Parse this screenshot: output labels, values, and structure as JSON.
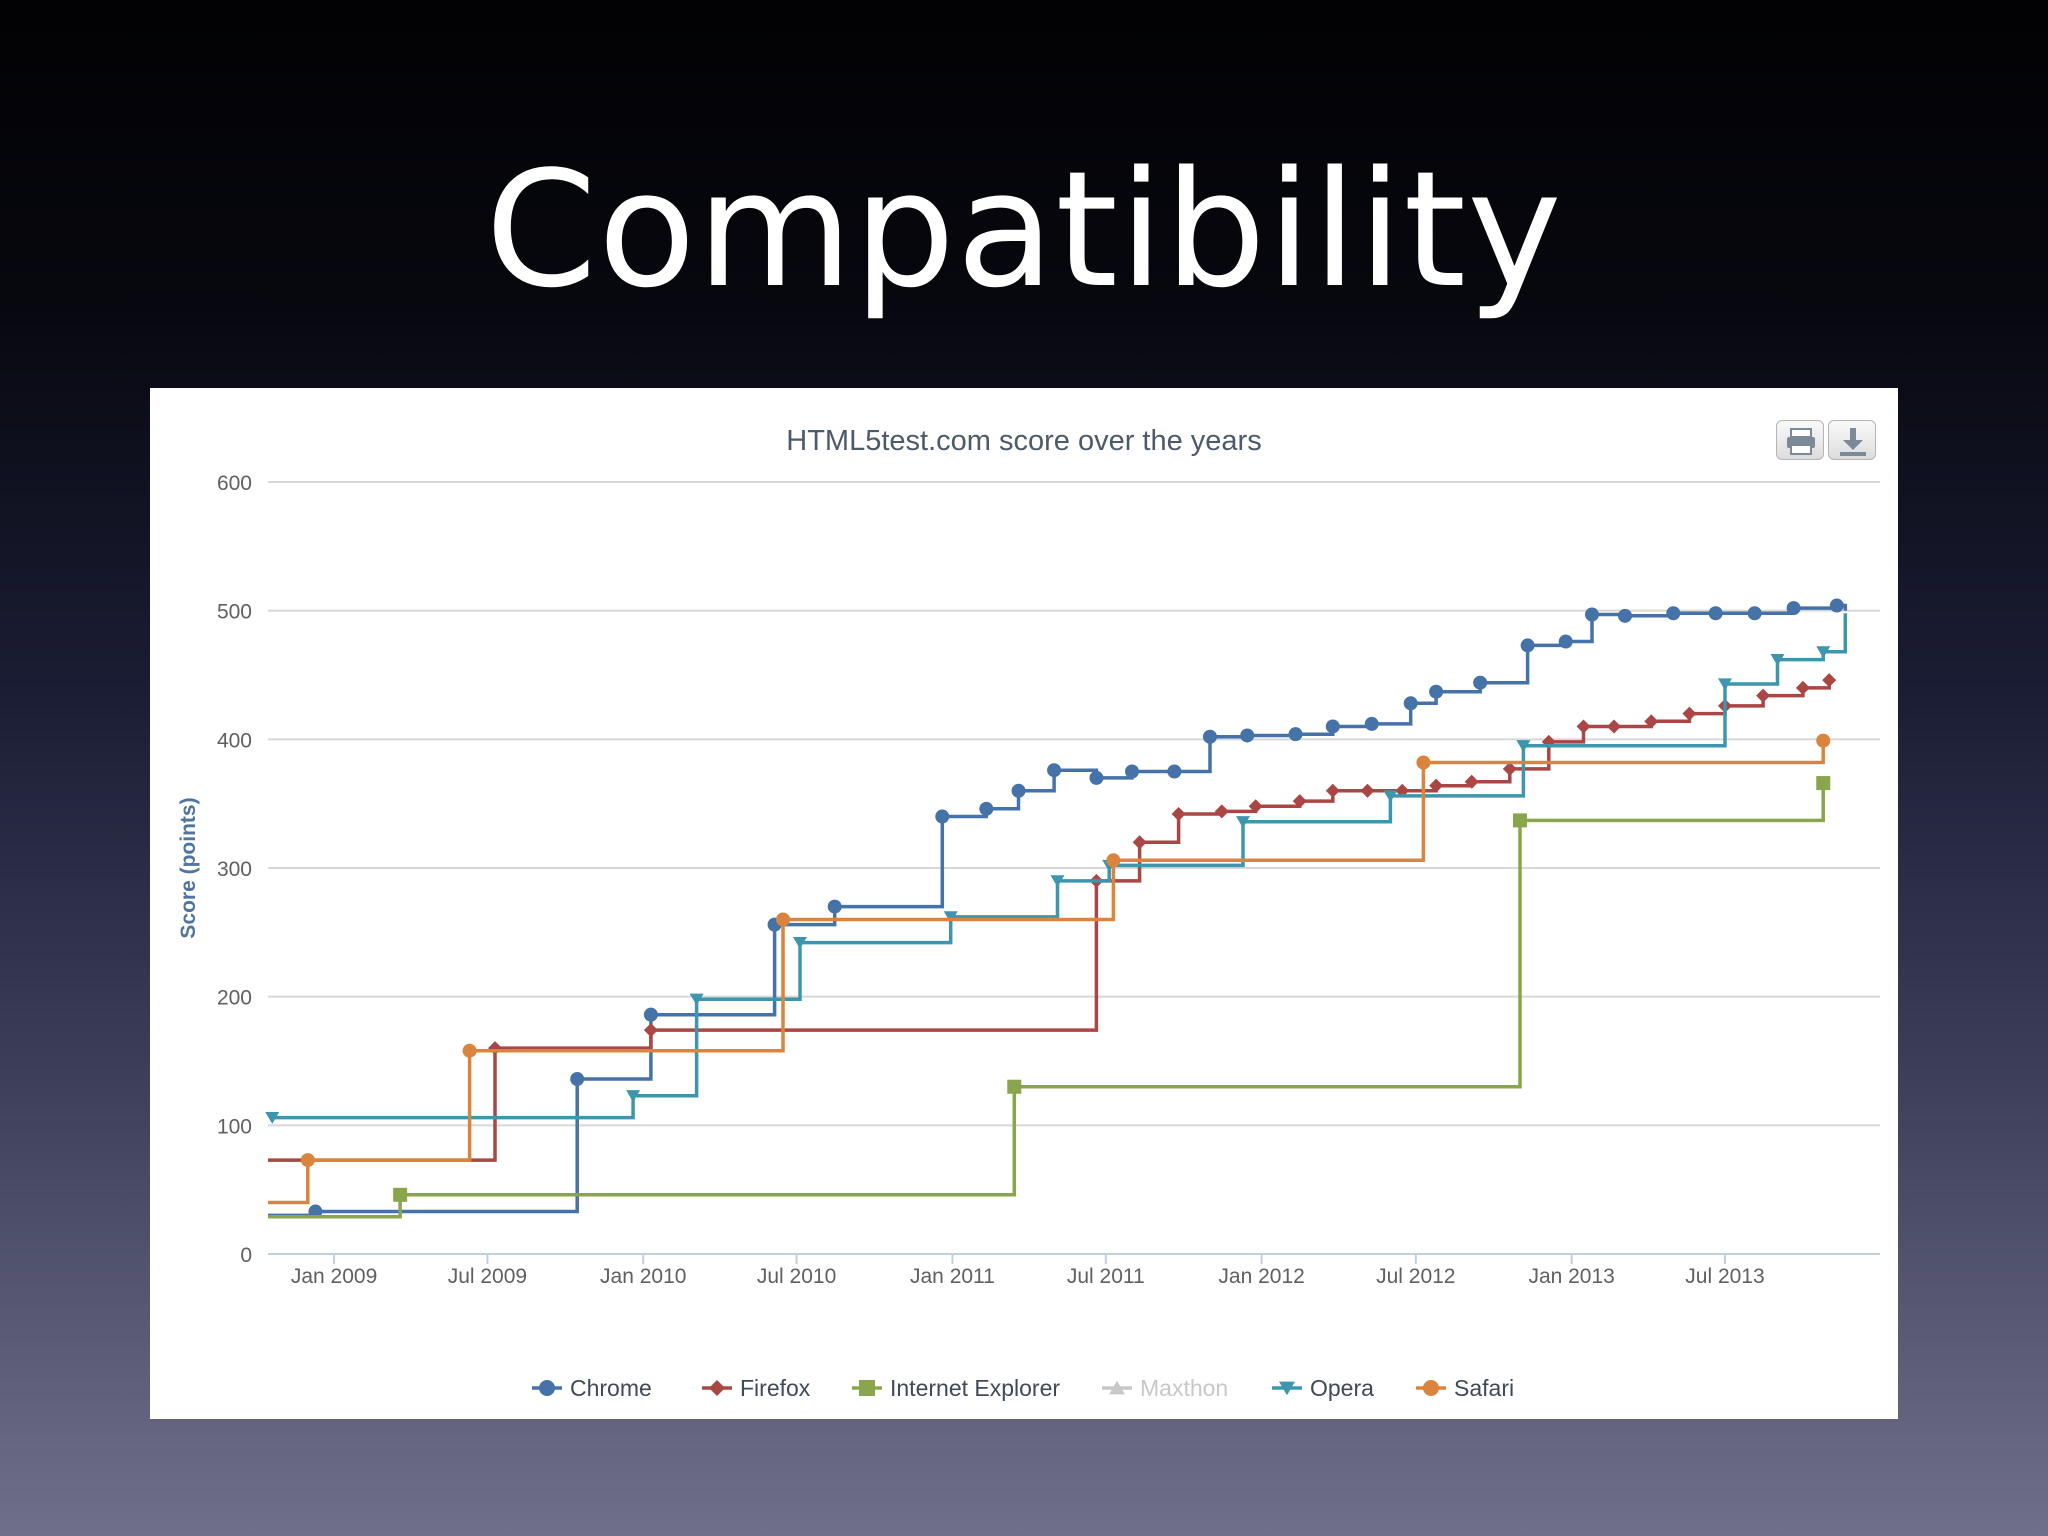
{
  "slide": {
    "title": "Compatibility"
  },
  "colors": {
    "Chrome": "#4572A7",
    "Firefox": "#AA4643",
    "Internet Explorer": "#89A54E",
    "Maxthon": "#c8c8c8",
    "Opera": "#3D96AE",
    "Safari": "#DB843D"
  },
  "chart_data": {
    "type": "line",
    "step": true,
    "title": "HTML5test.com score over the years",
    "ylabel": "Score (points)",
    "xlabel": "",
    "ylim": [
      0,
      600
    ],
    "yticks": [
      "0",
      "100",
      "200",
      "300",
      "400",
      "500",
      "600"
    ],
    "xlim": [
      "2008-10-15",
      "2013-12-31"
    ],
    "xticks": [
      {
        "date": "2009-01-01",
        "label": "Jan 2009"
      },
      {
        "date": "2009-07-01",
        "label": "Jul 2009"
      },
      {
        "date": "2010-01-01",
        "label": "Jan 2010"
      },
      {
        "date": "2010-07-01",
        "label": "Jul 2010"
      },
      {
        "date": "2011-01-01",
        "label": "Jan 2011"
      },
      {
        "date": "2011-07-01",
        "label": "Jul 2011"
      },
      {
        "date": "2012-01-01",
        "label": "Jan 2012"
      },
      {
        "date": "2012-07-01",
        "label": "Jul 2012"
      },
      {
        "date": "2013-01-01",
        "label": "Jan 2013"
      },
      {
        "date": "2013-07-01",
        "label": "Jul 2013"
      }
    ],
    "grid": true,
    "legend_position": "bottom",
    "series": [
      {
        "name": "Chrome",
        "marker": "circle",
        "points": [
          [
            "2008-10-15",
            30,
            false
          ],
          [
            "2008-12-10",
            33,
            true
          ],
          [
            "2009-10-15",
            136,
            true
          ],
          [
            "2010-01-10",
            186,
            true
          ],
          [
            "2010-06-05",
            256,
            true
          ],
          [
            "2010-08-15",
            270,
            true
          ],
          [
            "2010-12-20",
            340,
            true
          ],
          [
            "2011-02-10",
            346,
            true
          ],
          [
            "2011-03-20",
            360,
            true
          ],
          [
            "2011-05-01",
            376,
            true
          ],
          [
            "2011-06-20",
            370,
            true
          ],
          [
            "2011-08-01",
            375,
            true
          ],
          [
            "2011-09-20",
            375,
            true
          ],
          [
            "2011-11-01",
            402,
            true
          ],
          [
            "2011-12-15",
            403,
            true
          ],
          [
            "2012-02-10",
            404,
            true
          ],
          [
            "2012-03-25",
            410,
            true
          ],
          [
            "2012-05-10",
            412,
            true
          ],
          [
            "2012-06-25",
            428,
            true
          ],
          [
            "2012-07-25",
            437,
            true
          ],
          [
            "2012-09-15",
            444,
            true
          ],
          [
            "2012-11-10",
            473,
            true
          ],
          [
            "2012-12-25",
            476,
            true
          ],
          [
            "2013-01-25",
            497,
            true
          ],
          [
            "2013-03-05",
            496,
            true
          ],
          [
            "2013-05-01",
            498,
            true
          ],
          [
            "2013-06-20",
            498,
            true
          ],
          [
            "2013-08-05",
            498,
            true
          ],
          [
            "2013-09-20",
            502,
            true
          ],
          [
            "2013-11-10",
            504,
            true
          ],
          [
            "2013-11-20",
            500,
            false
          ]
        ]
      },
      {
        "name": "Firefox",
        "marker": "diamond",
        "points": [
          [
            "2008-10-15",
            73,
            false
          ],
          [
            "2009-07-10",
            160,
            true
          ],
          [
            "2010-01-10",
            174,
            true
          ],
          [
            "2011-06-20",
            290,
            true
          ],
          [
            "2011-08-10",
            320,
            true
          ],
          [
            "2011-09-25",
            342,
            true
          ],
          [
            "2011-11-15",
            344,
            true
          ],
          [
            "2011-12-25",
            348,
            true
          ],
          [
            "2012-02-15",
            352,
            true
          ],
          [
            "2012-03-25",
            360,
            true
          ],
          [
            "2012-05-05",
            360,
            true
          ],
          [
            "2012-06-15",
            360,
            true
          ],
          [
            "2012-07-25",
            364,
            true
          ],
          [
            "2012-09-05",
            367,
            true
          ],
          [
            "2012-10-20",
            377,
            true
          ],
          [
            "2012-12-05",
            398,
            true
          ],
          [
            "2013-01-15",
            410,
            true
          ],
          [
            "2013-02-20",
            410,
            true
          ],
          [
            "2013-04-05",
            414,
            true
          ],
          [
            "2013-05-20",
            420,
            true
          ],
          [
            "2013-07-01",
            426,
            true
          ],
          [
            "2013-08-15",
            434,
            true
          ],
          [
            "2013-10-01",
            440,
            true
          ],
          [
            "2013-11-01",
            446,
            true
          ]
        ]
      },
      {
        "name": "Internet Explorer",
        "marker": "square",
        "points": [
          [
            "2008-10-15",
            29,
            false
          ],
          [
            "2009-03-20",
            46,
            true
          ],
          [
            "2011-03-15",
            130,
            true
          ],
          [
            "2012-11-01",
            337,
            true
          ],
          [
            "2013-10-25",
            366,
            true
          ]
        ]
      },
      {
        "name": "Opera",
        "marker": "triangle-down",
        "points": [
          [
            "2008-10-20",
            106,
            true
          ],
          [
            "2009-12-20",
            123,
            true
          ],
          [
            "2010-03-05",
            198,
            true
          ],
          [
            "2010-07-05",
            242,
            true
          ],
          [
            "2010-12-30",
            262,
            true
          ],
          [
            "2011-05-05",
            290,
            true
          ],
          [
            "2011-07-05",
            302,
            true
          ],
          [
            "2011-12-10",
            336,
            true
          ],
          [
            "2012-06-01",
            356,
            true
          ],
          [
            "2012-11-05",
            395,
            true
          ],
          [
            "2013-07-01",
            443,
            true
          ],
          [
            "2013-09-01",
            462,
            true
          ],
          [
            "2013-10-25",
            468,
            true
          ],
          [
            "2013-11-20",
            498,
            false
          ]
        ]
      },
      {
        "name": "Safari",
        "marker": "circle",
        "points": [
          [
            "2008-10-15",
            40,
            false
          ],
          [
            "2008-12-01",
            73,
            true
          ],
          [
            "2009-06-10",
            158,
            true
          ],
          [
            "2010-06-15",
            260,
            true
          ],
          [
            "2011-07-10",
            306,
            true
          ],
          [
            "2012-07-10",
            382,
            true
          ],
          [
            "2013-10-25",
            399,
            true
          ]
        ]
      }
    ],
    "legend": [
      "Chrome",
      "Firefox",
      "Internet Explorer",
      "Maxthon",
      "Opera",
      "Safari"
    ],
    "legend_markers": [
      "circle",
      "diamond",
      "square",
      "triangle-up",
      "triangle-down",
      "circle"
    ],
    "legend_hidden": [
      "Maxthon"
    ]
  }
}
